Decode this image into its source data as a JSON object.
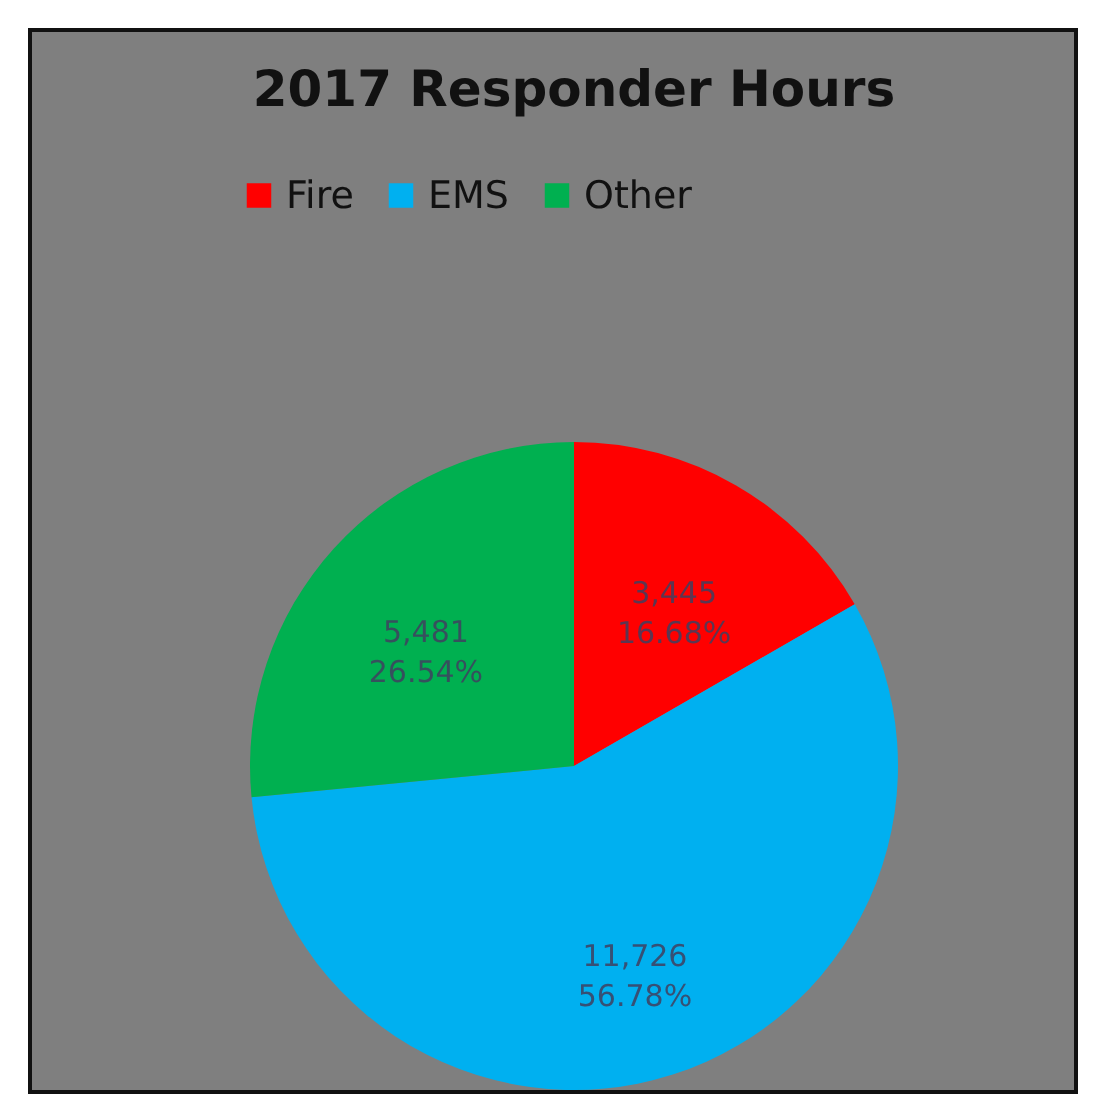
{
  "chart_data": {
    "type": "pie",
    "title": "2017 Responder Hours",
    "categories": [
      "Fire",
      "EMS",
      "Other"
    ],
    "values": [
      3445,
      11726,
      5481
    ],
    "colors": [
      "#ff0000",
      "#00b0f0",
      "#00b050"
    ],
    "value_labels": [
      "3,445\n16.68%",
      "11,726\n56.78%",
      "5,481\n26.54%"
    ],
    "legend": "top"
  }
}
